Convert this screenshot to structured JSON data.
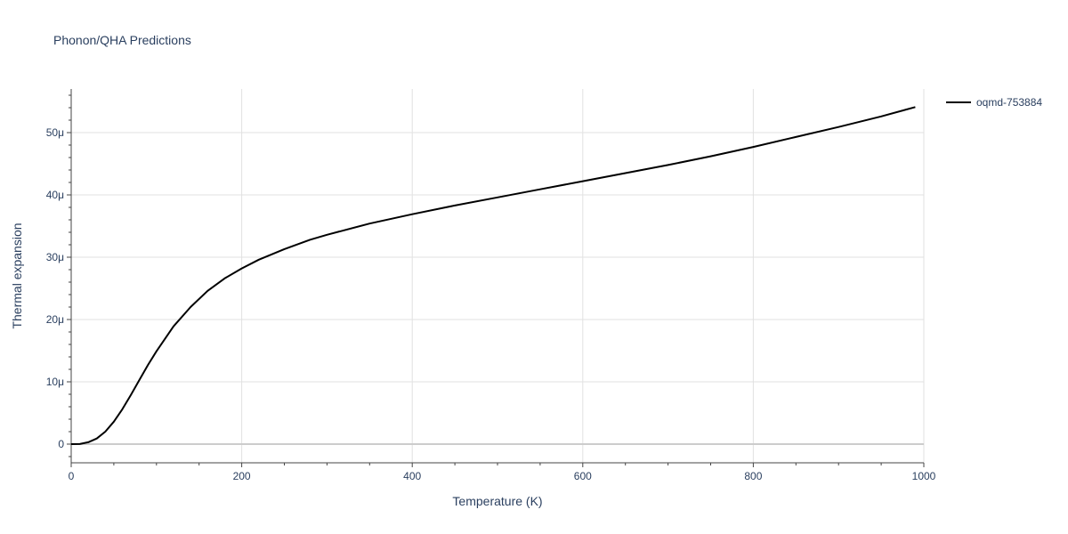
{
  "chart_data": {
    "type": "line",
    "title": "Phonon/QHA Predictions",
    "xlabel": "Temperature (K)",
    "ylabel": "Thermal expansion",
    "xlim": [
      0,
      1000
    ],
    "ylim": [
      -3e-06,
      5.7e-05
    ],
    "x_ticks": [
      {
        "value": 0,
        "label": "0"
      },
      {
        "value": 200,
        "label": "200"
      },
      {
        "value": 400,
        "label": "400"
      },
      {
        "value": 600,
        "label": "600"
      },
      {
        "value": 800,
        "label": "800"
      },
      {
        "value": 1000,
        "label": "1000"
      }
    ],
    "y_ticks": [
      {
        "value": 0,
        "label": "0"
      },
      {
        "value": 1e-05,
        "label": "10μ"
      },
      {
        "value": 2e-05,
        "label": "20μ"
      },
      {
        "value": 3e-05,
        "label": "30μ"
      },
      {
        "value": 4e-05,
        "label": "40μ"
      },
      {
        "value": 5e-05,
        "label": "50μ"
      }
    ],
    "grid": true,
    "legend_position": "top-right",
    "series": [
      {
        "name": "oqmd-753884",
        "color": "#000000",
        "x": [
          0,
          10,
          20,
          30,
          40,
          50,
          60,
          70,
          80,
          90,
          100,
          120,
          140,
          160,
          180,
          200,
          220,
          250,
          280,
          300,
          350,
          400,
          450,
          500,
          550,
          600,
          650,
          700,
          750,
          800,
          850,
          900,
          950,
          990
        ],
        "y": [
          0,
          2e-08,
          3e-07,
          9e-07,
          2e-06,
          3.6e-06,
          5.6e-06,
          7.9e-06,
          1.03e-05,
          1.27e-05,
          1.49e-05,
          1.89e-05,
          2.2e-05,
          2.46e-05,
          2.66e-05,
          2.82e-05,
          2.96e-05,
          3.13e-05,
          3.28e-05,
          3.36e-05,
          3.54e-05,
          3.69e-05,
          3.83e-05,
          3.96e-05,
          4.09e-05,
          4.22e-05,
          4.35e-05,
          4.48e-05,
          4.62e-05,
          4.77e-05,
          4.93e-05,
          5.09e-05,
          5.26e-05,
          5.41e-05
        ]
      }
    ]
  }
}
